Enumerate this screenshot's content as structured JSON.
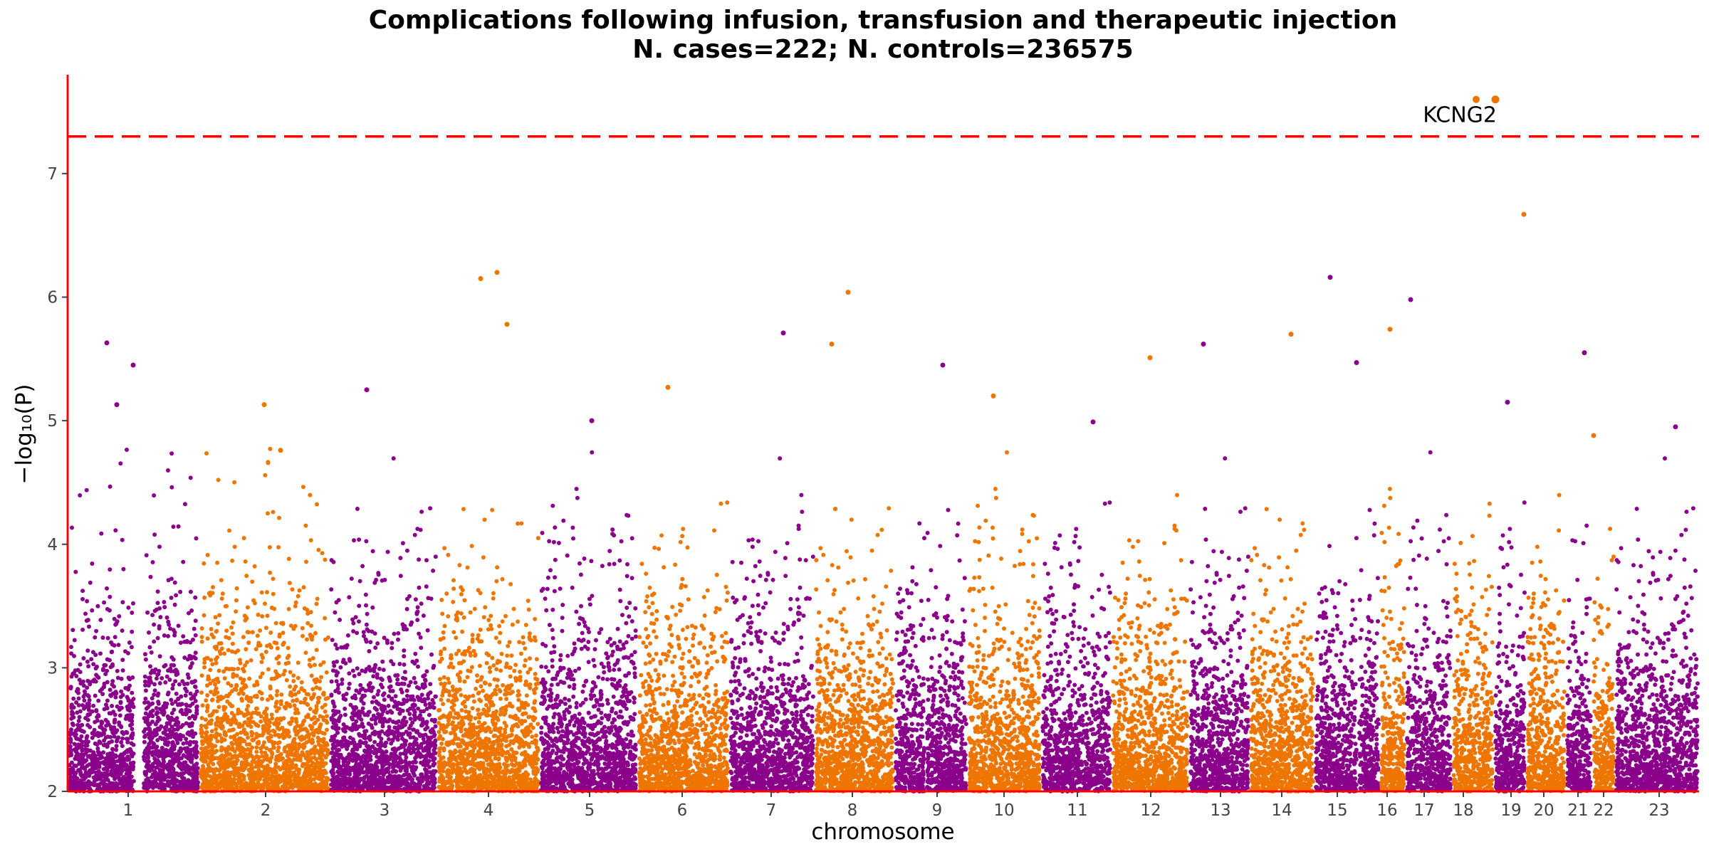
{
  "chart_data": {
    "type": "scatter",
    "title": "Complications following infusion, transfusion and therapeutic injection",
    "subtitle": "N. cases=222; N. controls=236575",
    "xlabel": "chromosome",
    "ylabel": "−log₁₀(P)",
    "ylim": [
      2,
      7.8
    ],
    "y_ticks": [
      "2",
      "3",
      "4",
      "5",
      "6",
      "7"
    ],
    "chromosomes": [
      "1",
      "2",
      "3",
      "4",
      "5",
      "6",
      "7",
      "8",
      "9",
      "10",
      "11",
      "12",
      "13",
      "14",
      "15",
      "16",
      "17",
      "18",
      "19",
      "20",
      "21",
      "22",
      "23"
    ],
    "series_colors": [
      "#8B008B",
      "#EE7600"
    ],
    "significance_threshold": 7.3,
    "threshold_color": "#FF0000",
    "annotations": [
      {
        "label": "KCNG2",
        "chromosome": "18",
        "y": 7.6
      }
    ],
    "notable_points": [
      {
        "chromosome": "1",
        "y": 5.63
      },
      {
        "chromosome": "1",
        "y": 5.45
      },
      {
        "chromosome": "1",
        "y": 5.13
      },
      {
        "chromosome": "2",
        "y": 4.76
      },
      {
        "chromosome": "2",
        "y": 5.13
      },
      {
        "chromosome": "3",
        "y": 5.25
      },
      {
        "chromosome": "4",
        "y": 6.2
      },
      {
        "chromosome": "4",
        "y": 6.15
      },
      {
        "chromosome": "4",
        "y": 5.78
      },
      {
        "chromosome": "5",
        "y": 5.0
      },
      {
        "chromosome": "6",
        "y": 5.27
      },
      {
        "chromosome": "7",
        "y": 5.71
      },
      {
        "chromosome": "8",
        "y": 6.04
      },
      {
        "chromosome": "8",
        "y": 5.62
      },
      {
        "chromosome": "9",
        "y": 5.45
      },
      {
        "chromosome": "10",
        "y": 5.2
      },
      {
        "chromosome": "11",
        "y": 4.99
      },
      {
        "chromosome": "12",
        "y": 5.51
      },
      {
        "chromosome": "13",
        "y": 5.62
      },
      {
        "chromosome": "14",
        "y": 5.7
      },
      {
        "chromosome": "15",
        "y": 6.16
      },
      {
        "chromosome": "15",
        "y": 5.47
      },
      {
        "chromosome": "16",
        "y": 5.74
      },
      {
        "chromosome": "17",
        "y": 5.98
      },
      {
        "chromosome": "18",
        "y": 7.6
      },
      {
        "chromosome": "19",
        "y": 5.15
      },
      {
        "chromosome": "20",
        "y": 6.67
      },
      {
        "chromosome": "21",
        "y": 5.55
      },
      {
        "chromosome": "22",
        "y": 4.88
      },
      {
        "chromosome": "23",
        "y": 4.95
      }
    ]
  }
}
